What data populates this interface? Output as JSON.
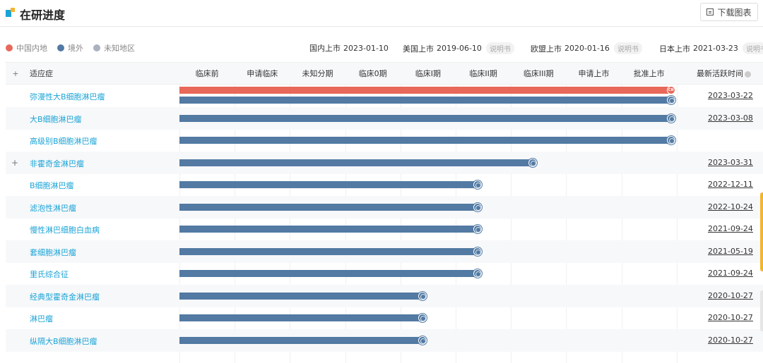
{
  "header": {
    "title": "在研进度",
    "download_label": "下载图表"
  },
  "legend": [
    {
      "label": "中国内地",
      "color": "#e8685a"
    },
    {
      "label": "境外",
      "color": "#527aa3"
    },
    {
      "label": "未知地区",
      "color": "#aab2bd"
    }
  ],
  "markets": [
    {
      "label": "国内上市",
      "date": "2023-01-10",
      "tag": ""
    },
    {
      "label": "美国上市",
      "date": "2019-06-10",
      "tag": "说明书"
    },
    {
      "label": "欧盟上市",
      "date": "2020-01-16",
      "tag": "说明书"
    },
    {
      "label": "日本上市",
      "date": "2021-03-23",
      "tag": "说明书"
    }
  ],
  "table": {
    "expand_label": "+",
    "indication_header": "适应症",
    "stages": [
      "临床前",
      "申请临床",
      "未知分期",
      "临床0期",
      "临床I期",
      "临床II期",
      "临床III期",
      "申请上市",
      "批准上市"
    ],
    "time_header": "最新活跃时间",
    "cn_mark": "CN",
    "rows": [
      {
        "indication": "弥漫性大B细胞淋巴瘤",
        "expand": "",
        "time": "2023-03-22",
        "cn_stage": 9,
        "ov_stage": 9
      },
      {
        "indication": "大B细胞淋巴瘤",
        "expand": "",
        "time": "2023-03-08",
        "cn_stage": 0,
        "ov_stage": 9
      },
      {
        "indication": "高级别B细胞淋巴瘤",
        "expand": "",
        "time": "",
        "cn_stage": 0,
        "ov_stage": 9
      },
      {
        "indication": "非霍奇金淋巴瘤",
        "expand": "+",
        "time": "2023-03-31",
        "cn_stage": 0,
        "ov_stage": 6.5
      },
      {
        "indication": "B细胞淋巴瘤",
        "expand": "",
        "time": "2022-12-11",
        "cn_stage": 0,
        "ov_stage": 5.5
      },
      {
        "indication": "滤泡性淋巴瘤",
        "expand": "",
        "time": "2022-10-24",
        "cn_stage": 0,
        "ov_stage": 5.5
      },
      {
        "indication": "慢性淋巴细胞白血病",
        "expand": "",
        "time": "2021-09-24",
        "cn_stage": 0,
        "ov_stage": 5.5
      },
      {
        "indication": "套细胞淋巴瘤",
        "expand": "",
        "time": "2021-05-19",
        "cn_stage": 0,
        "ov_stage": 5.5
      },
      {
        "indication": "里氏综合征",
        "expand": "",
        "time": "2021-09-24",
        "cn_stage": 0,
        "ov_stage": 5.5
      },
      {
        "indication": "经典型霍奇金淋巴瘤",
        "expand": "",
        "time": "2020-10-27",
        "cn_stage": 0,
        "ov_stage": 4.5
      },
      {
        "indication": "淋巴瘤",
        "expand": "",
        "time": "2020-10-27",
        "cn_stage": 0,
        "ov_stage": 4.5
      },
      {
        "indication": "纵隔大B细胞淋巴瘤",
        "expand": "",
        "time": "2020-10-27",
        "cn_stage": 0,
        "ov_stage": 4.5
      }
    ]
  }
}
